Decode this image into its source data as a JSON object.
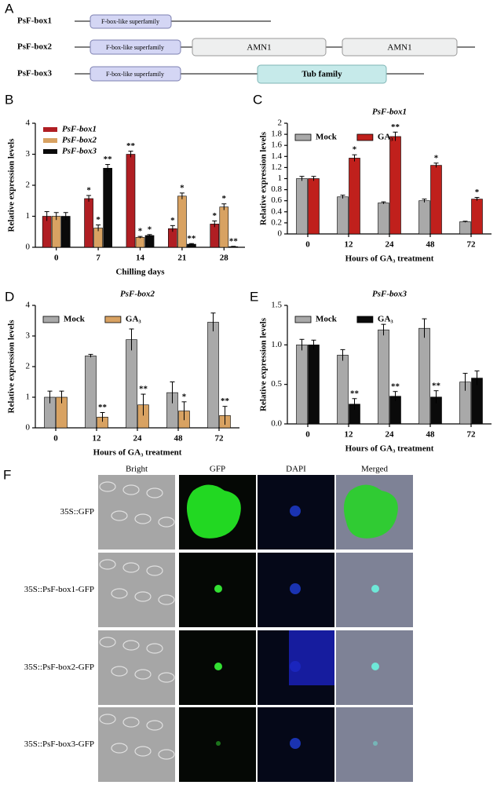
{
  "panel_a": {
    "label": "A",
    "proteins": [
      {
        "name": "PsF-box1",
        "domains": [
          "F-box-like superfamily"
        ]
      },
      {
        "name": "PsF-box2",
        "domains": [
          "F-box-like superfamily",
          "AMN1",
          "AMN1"
        ]
      },
      {
        "name": "PsF-box3",
        "domains": [
          "F-box-like superfamily",
          "Tub family"
        ]
      }
    ]
  },
  "chart_data": [
    {
      "type": "bar",
      "panel_label": "B",
      "y_label": "Relative expression levels",
      "x_label": "Chilling days",
      "categories": [
        "0",
        "7",
        "14",
        "21",
        "28"
      ],
      "ylim": [
        0,
        4
      ],
      "yticks": [
        0,
        1,
        2,
        3,
        4
      ],
      "legend": "upper left",
      "legend_orientation": "vertical",
      "series": [
        {
          "name": "PsF-box1",
          "color": "#b01e23",
          "values": [
            1.0,
            1.57,
            3.0,
            0.6,
            0.75
          ],
          "errors": [
            0.15,
            0.1,
            0.1,
            0.1,
            0.1
          ],
          "sig_labels": [
            null,
            "*",
            "**",
            "*",
            "*"
          ]
        },
        {
          "name": "PsF-box2",
          "color": "#d8a262",
          "values": [
            1.0,
            0.62,
            0.32,
            1.65,
            1.3
          ],
          "errors": [
            0.12,
            0.1,
            0.03,
            0.1,
            0.1
          ],
          "sig_labels": [
            null,
            "*",
            "*",
            "*",
            "*"
          ]
        },
        {
          "name": "PsF-box3",
          "color": "#0a0a0a",
          "values": [
            1.0,
            2.55,
            0.38,
            0.1,
            0.02
          ],
          "errors": [
            0.12,
            0.12,
            0.03,
            0.02,
            0.01
          ],
          "sig_labels": [
            null,
            "**",
            "*",
            "**",
            "**"
          ]
        }
      ]
    },
    {
      "type": "bar",
      "panel_label": "C",
      "title": "PsF-box1",
      "y_label": "Relative expression levels",
      "x_label": "Hours of GA₃ treatment",
      "categories": [
        "0",
        "12",
        "24",
        "48",
        "72"
      ],
      "ylim": [
        0,
        2
      ],
      "yticks": [
        0,
        0.2,
        0.4,
        0.6,
        0.8,
        1,
        1.2,
        1.4,
        1.6,
        1.8,
        2
      ],
      "legend": "upper left",
      "legend_orientation": "horizontal",
      "series": [
        {
          "name": "Mock",
          "color": "#a9a9a9",
          "values": [
            1.0,
            0.67,
            0.56,
            0.6,
            0.22
          ],
          "errors": [
            0.04,
            0.03,
            0.02,
            0.03,
            0.01
          ],
          "sig_labels": [
            null,
            null,
            null,
            null,
            null
          ]
        },
        {
          "name": "GA₃",
          "color": "#c0201c",
          "values": [
            1.0,
            1.37,
            1.76,
            1.24,
            0.63
          ],
          "errors": [
            0.04,
            0.06,
            0.08,
            0.04,
            0.03
          ],
          "sig_labels": [
            null,
            "*",
            "**",
            "*",
            "*"
          ]
        }
      ]
    },
    {
      "type": "bar",
      "panel_label": "D",
      "title": "PsF-box2",
      "y_label": "Relative expression levels",
      "x_label": "Hours of GA₃ treatment",
      "categories": [
        "0",
        "12",
        "24",
        "48",
        "72"
      ],
      "ylim": [
        0,
        4
      ],
      "yticks": [
        0,
        1,
        2,
        3,
        4
      ],
      "legend": "upper left",
      "legend_orientation": "horizontal",
      "series": [
        {
          "name": "Mock",
          "color": "#a9a9a9",
          "values": [
            1.0,
            2.35,
            2.88,
            1.15,
            3.45
          ],
          "errors": [
            0.2,
            0.05,
            0.35,
            0.35,
            0.3
          ],
          "sig_labels": [
            null,
            null,
            null,
            null,
            null
          ]
        },
        {
          "name": "GA₃",
          "color": "#d8a262",
          "values": [
            1.0,
            0.35,
            0.75,
            0.55,
            0.4
          ],
          "errors": [
            0.2,
            0.15,
            0.35,
            0.3,
            0.3
          ],
          "sig_labels": [
            null,
            "**",
            "**",
            "*",
            "**"
          ]
        }
      ]
    },
    {
      "type": "bar",
      "panel_label": "E",
      "title": "PsF-box3",
      "y_label": "Relative expression levels",
      "x_label": "Hours of GA₃ treatment",
      "categories": [
        "0",
        "12",
        "24",
        "48",
        "72"
      ],
      "ylim": [
        0,
        1.5
      ],
      "yticks": [
        {
          "value": 0,
          "label": "0.0"
        },
        0.5,
        {
          "value": 1,
          "label": "1.0"
        },
        1.5
      ],
      "legend": "upper left",
      "legend_orientation": "horizontal",
      "series": [
        {
          "name": "Mock",
          "color": "#a9a9a9",
          "values": [
            1.0,
            0.87,
            1.19,
            1.21,
            0.53
          ],
          "errors": [
            0.07,
            0.07,
            0.07,
            0.12,
            0.11
          ],
          "sig_labels": [
            null,
            null,
            null,
            null,
            null
          ]
        },
        {
          "name": "GA₃",
          "color": "#0a0a0a",
          "values": [
            1.0,
            0.25,
            0.35,
            0.34,
            0.58
          ],
          "errors": [
            0.06,
            0.07,
            0.06,
            0.08,
            0.09
          ],
          "sig_labels": [
            null,
            "**",
            "**",
            "**",
            null
          ]
        }
      ]
    }
  ],
  "panel_f": {
    "label": "F",
    "columns": [
      "Bright",
      "GFP",
      "DAPI",
      "Merged"
    ],
    "rows": [
      "35S::GFP",
      "35S::PsF-box1-GFP",
      "35S::PsF-box2-GFP",
      "35S::PsF-box3-GFP"
    ]
  }
}
